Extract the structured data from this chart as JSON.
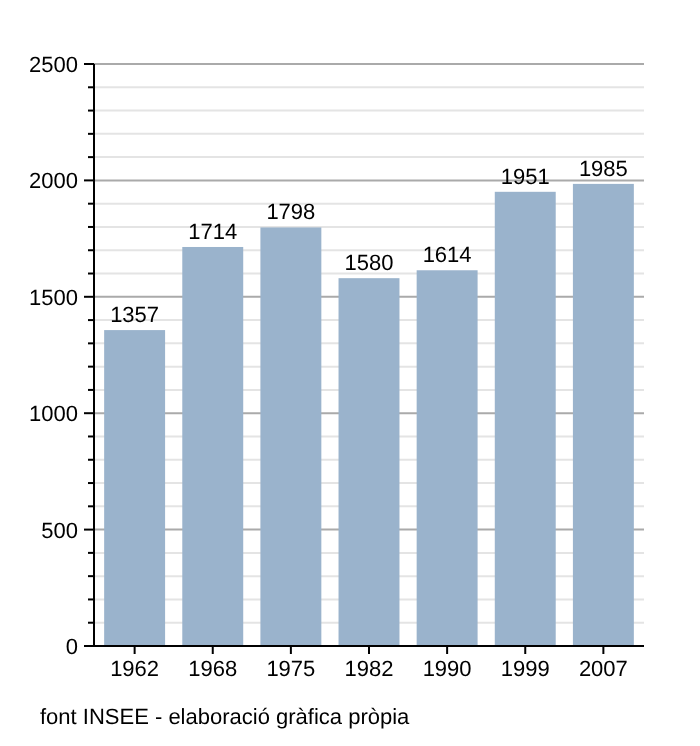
{
  "chart_data": {
    "type": "bar",
    "categories": [
      "1962",
      "1968",
      "1975",
      "1982",
      "1990",
      "1999",
      "2007"
    ],
    "values": [
      1357,
      1714,
      1798,
      1580,
      1614,
      1951,
      1985
    ],
    "color": "#9ab3cc",
    "ylim": [
      0,
      2500
    ],
    "yticks": [
      0,
      {
        "value": 100,
        "label": null
      },
      {
        "value": 200,
        "label": null
      },
      {
        "value": 300,
        "label": null
      },
      {
        "value": 400,
        "label": null
      },
      500,
      {
        "value": 600,
        "label": null
      },
      {
        "value": 700,
        "label": null
      },
      {
        "value": 800,
        "label": null
      },
      {
        "value": 900,
        "label": null
      },
      1000,
      {
        "value": 1100,
        "label": null
      },
      {
        "value": 1200,
        "label": null
      },
      {
        "value": 1300,
        "label": null
      },
      {
        "value": 1400,
        "label": null
      },
      1500,
      {
        "value": 1600,
        "label": null
      },
      {
        "value": 1700,
        "label": null
      },
      {
        "value": 1800,
        "label": null
      },
      {
        "value": 1900,
        "label": null
      },
      2000,
      {
        "value": 2100,
        "label": null
      },
      {
        "value": 2200,
        "label": null
      },
      {
        "value": 2300,
        "label": null
      },
      {
        "value": 2400,
        "label": null
      },
      2500
    ],
    "grid": "y",
    "data_labels": true,
    "annotations": [
      "font INSEE - elaboració gràfica pròpia"
    ]
  }
}
